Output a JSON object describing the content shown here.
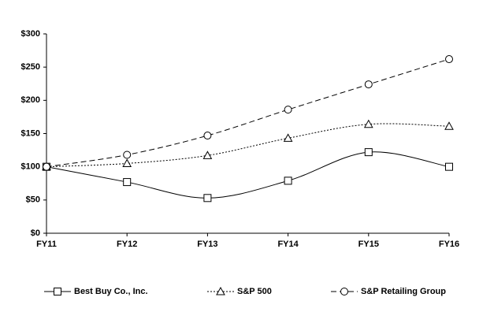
{
  "chart_data": {
    "type": "line",
    "categories": [
      "FY11",
      "FY12",
      "FY13",
      "FY14",
      "FY15",
      "FY16"
    ],
    "series": [
      {
        "name": "Best Buy Co., Inc.",
        "color": "#000000",
        "line_style": "solid",
        "marker": "square",
        "values": [
          100,
          77,
          53,
          79,
          122,
          100
        ]
      },
      {
        "name": "S&P 500",
        "color": "#000000",
        "line_style": "dotted",
        "marker": "triangle",
        "values": [
          100,
          105,
          117,
          143,
          164,
          161
        ]
      },
      {
        "name": "S&P Retailing Group",
        "color": "#000000",
        "line_style": "dashed",
        "marker": "circle",
        "values": [
          100,
          118,
          147,
          186,
          224,
          262
        ]
      }
    ],
    "ylim": [
      0,
      300
    ],
    "yticks": [
      {
        "value": 0,
        "label": "$0"
      },
      {
        "value": 50,
        "label": "$50"
      },
      {
        "value": 100,
        "label": "$100"
      },
      {
        "value": 150,
        "label": "$150"
      },
      {
        "value": 200,
        "label": "$200"
      },
      {
        "value": 250,
        "label": "$250"
      },
      {
        "value": 300,
        "label": "$300"
      }
    ],
    "grid": false,
    "smooth": true,
    "legend": "bottom"
  }
}
